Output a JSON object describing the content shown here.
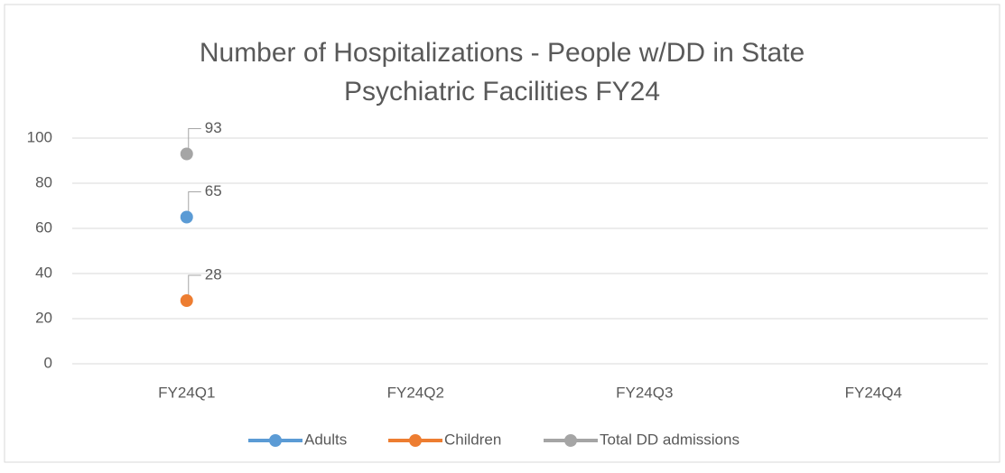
{
  "chart_data": {
    "type": "line",
    "title": [
      "Number of Hospitalizations - People w/DD in State",
      "Psychiatric Facilities FY24"
    ],
    "categories": [
      "FY24Q1",
      "FY24Q2",
      "FY24Q3",
      "FY24Q4"
    ],
    "series": [
      {
        "name": "Adults",
        "color": "#5b9bd5",
        "values": [
          65,
          null,
          null,
          null
        ]
      },
      {
        "name": "Children",
        "color": "#ed7d31",
        "values": [
          28,
          null,
          null,
          null
        ]
      },
      {
        "name": "Total DD admissions",
        "color": "#a5a5a5",
        "values": [
          93,
          null,
          null,
          null
        ]
      }
    ],
    "ylim": [
      0,
      100
    ],
    "yticks": [
      0,
      20,
      40,
      60,
      80,
      100
    ],
    "grid": true,
    "legend": "bottom"
  }
}
